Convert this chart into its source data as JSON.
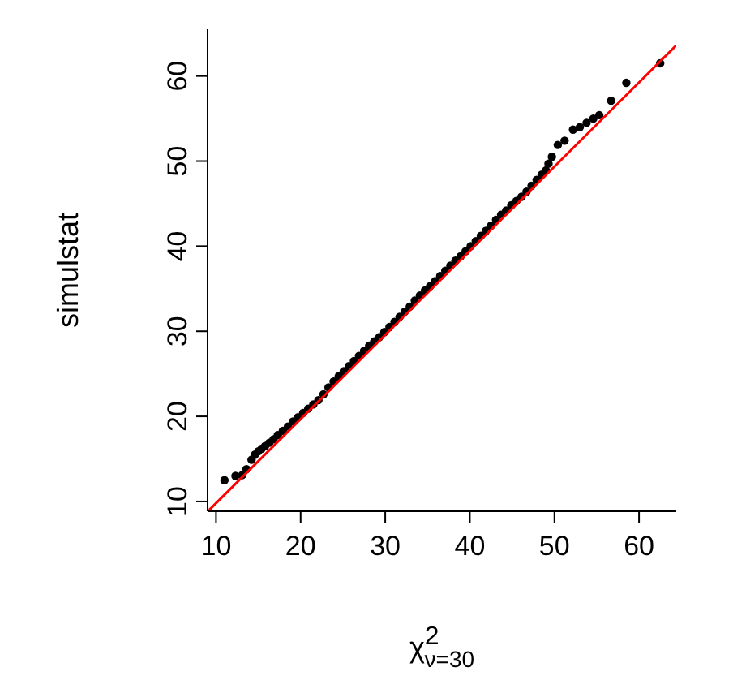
{
  "chart_data": {
    "type": "scatter",
    "xlabel": "χ$^{2}$$_{ν=30}$",
    "ylabel": "simulstat",
    "xlim": [
      9.0,
      64.4
    ],
    "ylim": [
      8.85,
      65.5
    ],
    "xticks": [
      10,
      20,
      30,
      40,
      50,
      60
    ],
    "yticks": [
      10,
      20,
      30,
      40,
      50,
      60
    ],
    "grid": false,
    "marker": "circle",
    "series": [
      {
        "color": "#000000",
        "x": [
          11.0,
          12.3,
          13.1,
          13.6,
          14.2,
          14.6,
          15.0,
          15.4,
          15.8,
          16.3,
          16.8,
          17.3,
          17.9,
          18.5,
          19.1,
          19.7,
          20.3,
          20.9,
          21.5,
          22.1,
          22.7,
          23.3,
          23.9,
          24.5,
          25.1,
          25.7,
          26.3,
          26.9,
          27.5,
          28.1,
          28.7,
          29.3,
          29.9,
          30.5,
          31.1,
          31.7,
          32.3,
          32.9,
          33.5,
          34.1,
          34.7,
          35.3,
          35.9,
          36.5,
          37.1,
          37.7,
          38.3,
          38.9,
          39.5,
          40.1,
          40.7,
          41.3,
          41.9,
          42.5,
          43.1,
          43.7,
          44.3,
          44.9,
          45.5,
          46.1,
          46.7,
          47.3,
          47.9,
          48.5,
          49.0,
          49.3,
          49.7,
          50.4,
          51.2,
          52.2,
          53.0,
          53.8,
          54.6,
          55.3,
          56.7,
          58.5,
          62.5
        ],
        "values": [
          12.5,
          13.0,
          13.1,
          13.8,
          14.9,
          15.5,
          15.9,
          16.2,
          16.5,
          16.9,
          17.3,
          17.8,
          18.3,
          18.8,
          19.4,
          19.9,
          20.4,
          20.9,
          21.4,
          21.9,
          22.6,
          23.4,
          24.1,
          24.7,
          25.3,
          25.9,
          26.5,
          27.1,
          27.7,
          28.3,
          28.8,
          29.3,
          29.9,
          30.5,
          31.1,
          31.7,
          32.3,
          32.9,
          33.6,
          34.2,
          34.8,
          35.3,
          35.9,
          36.5,
          37.1,
          37.7,
          38.3,
          38.8,
          39.4,
          40.0,
          40.6,
          41.2,
          41.8,
          42.4,
          43.1,
          43.7,
          44.2,
          44.8,
          45.3,
          45.8,
          46.4,
          47.1,
          47.8,
          48.4,
          48.9,
          49.7,
          50.5,
          51.9,
          52.4,
          53.7,
          54.0,
          54.5,
          55.0,
          55.4,
          57.1,
          59.2,
          61.5
        ]
      },
      {
        "type": "line",
        "color": "#ff0000",
        "marker": "none",
        "x": [
          9.2,
          64.4
        ],
        "values": [
          9.0,
          63.6
        ]
      }
    ]
  }
}
